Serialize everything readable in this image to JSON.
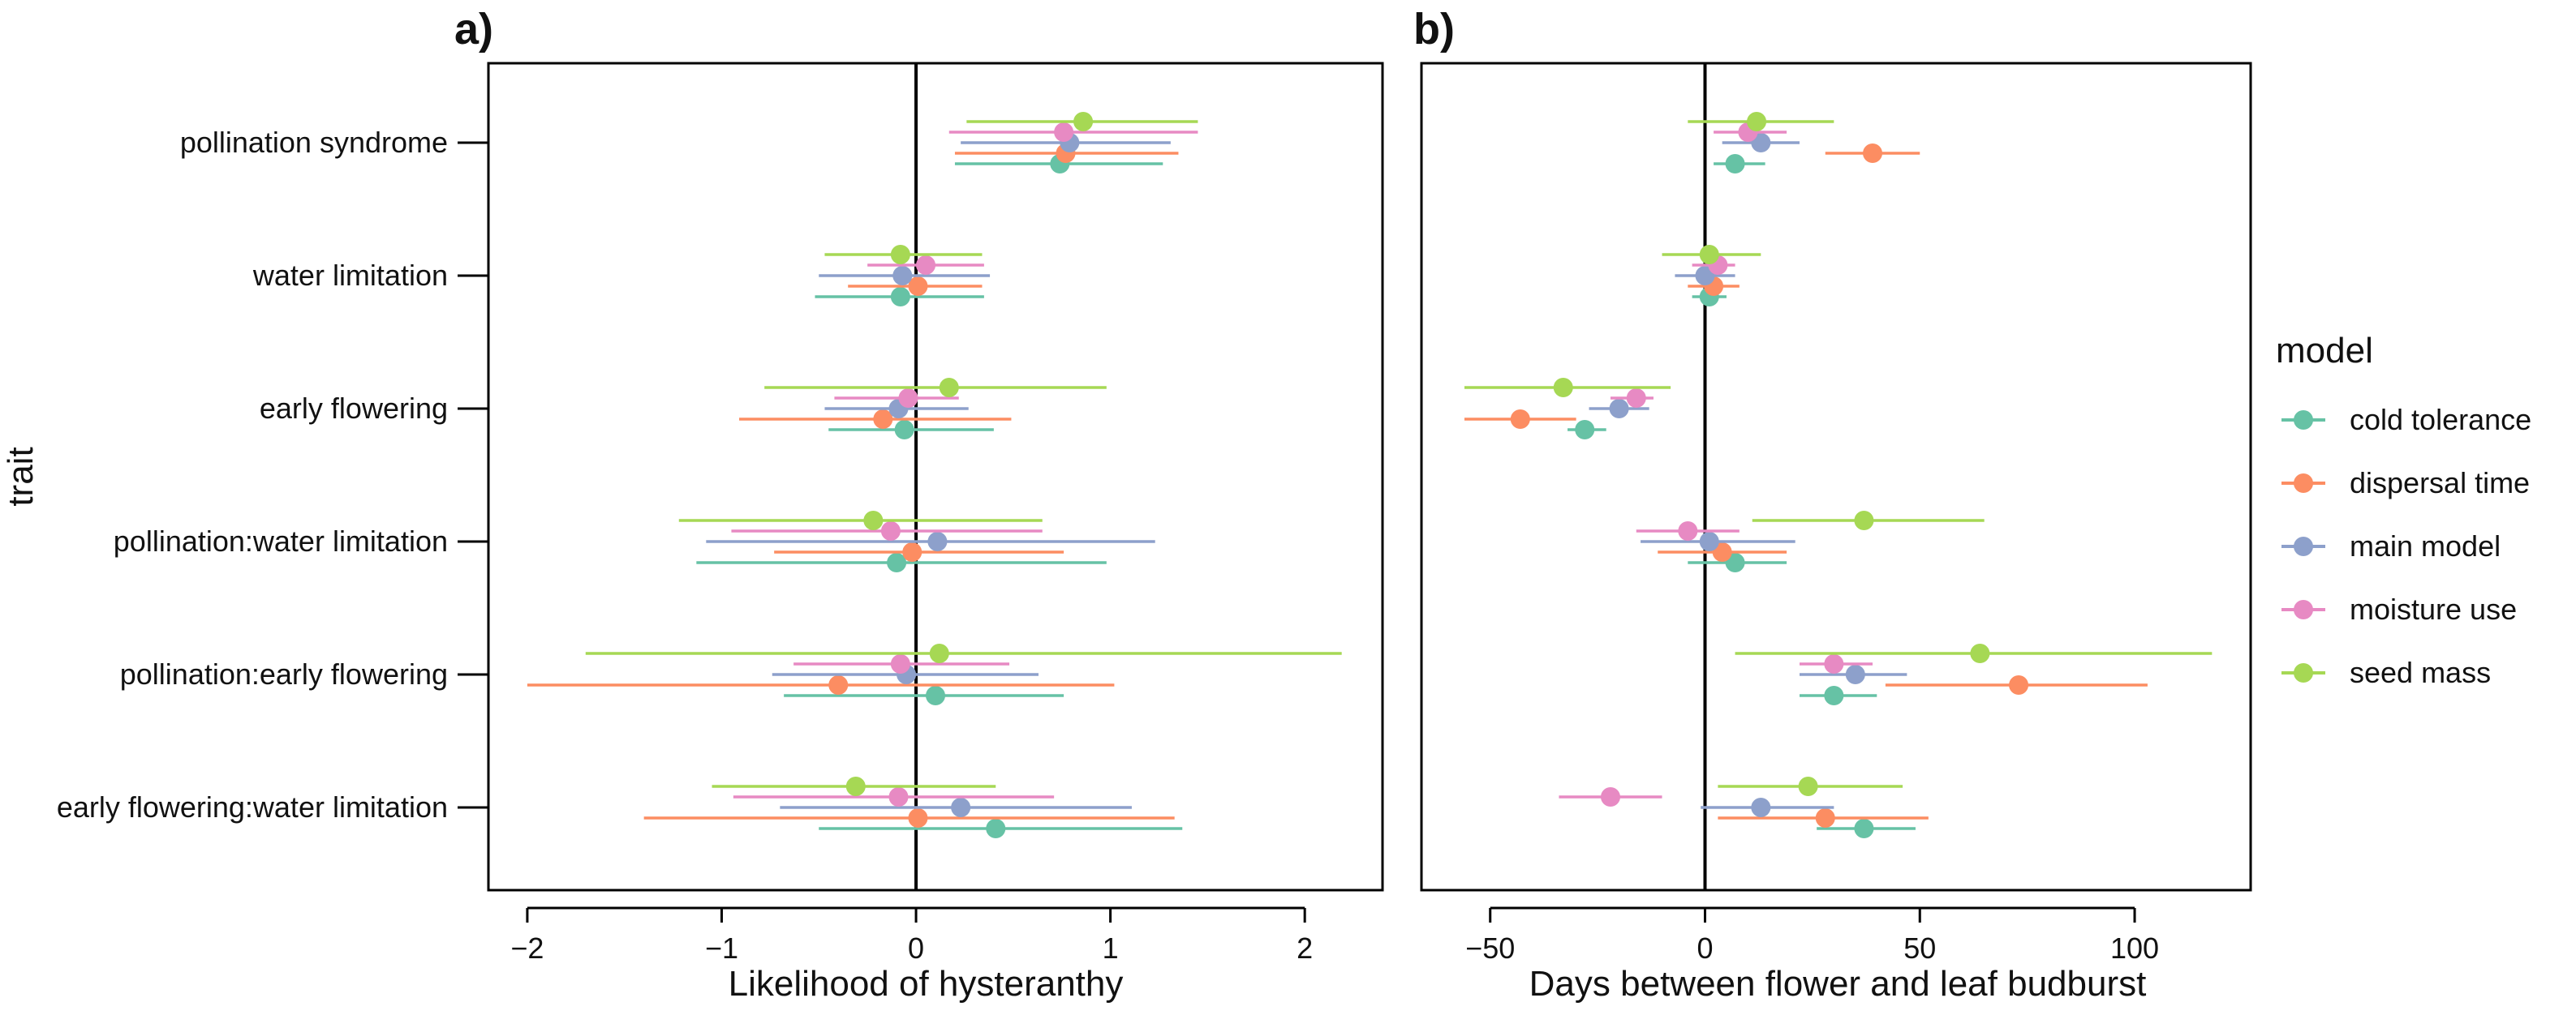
{
  "legend": {
    "title": "model",
    "entries": [
      {
        "name": "cold tolerance",
        "color": "#66C2A5"
      },
      {
        "name": "dispersal time",
        "color": "#FC8D62"
      },
      {
        "name": "main model",
        "color": "#8DA0CB"
      },
      {
        "name": "moisture use",
        "color": "#E78AC3"
      },
      {
        "name": "seed mass",
        "color": "#A6D854"
      }
    ]
  },
  "y_axis_title": "trait",
  "traits": [
    "pollination syndrome",
    "water limitation",
    "early flowering",
    "pollination:water limitation",
    "pollination:early flowering",
    "early flowering:water limitation"
  ],
  "chart_data": [
    {
      "type": "scatter",
      "panel_label": "a)",
      "title": "",
      "xlabel": "Likelihood of hysteranthy",
      "ylabel": "trait",
      "xlim": [
        -2.2,
        2.4
      ],
      "xticks": [
        -2,
        -1,
        0,
        1,
        2
      ],
      "xtick_labels": [
        "−2",
        "−1",
        "0",
        "1",
        "2"
      ],
      "reference_line_x": 0,
      "series": [
        {
          "name": "cold tolerance",
          "points": [
            {
              "trait": "pollination syndrome",
              "est": 0.74,
              "lo": 0.2,
              "hi": 1.27
            },
            {
              "trait": "water limitation",
              "est": -0.08,
              "lo": -0.52,
              "hi": 0.35
            },
            {
              "trait": "early flowering",
              "est": -0.06,
              "lo": -0.45,
              "hi": 0.4
            },
            {
              "trait": "pollination:water limitation",
              "est": -0.1,
              "lo": -1.13,
              "hi": 0.98
            },
            {
              "trait": "pollination:early flowering",
              "est": 0.1,
              "lo": -0.68,
              "hi": 0.76
            },
            {
              "trait": "early flowering:water limitation",
              "est": 0.41,
              "lo": -0.5,
              "hi": 1.37
            }
          ]
        },
        {
          "name": "dispersal time",
          "points": [
            {
              "trait": "pollination syndrome",
              "est": 0.77,
              "lo": 0.2,
              "hi": 1.35
            },
            {
              "trait": "water limitation",
              "est": 0.01,
              "lo": -0.35,
              "hi": 0.34
            },
            {
              "trait": "early flowering",
              "est": -0.17,
              "lo": -0.91,
              "hi": 0.49
            },
            {
              "trait": "pollination:water limitation",
              "est": -0.02,
              "lo": -0.73,
              "hi": 0.76
            },
            {
              "trait": "pollination:early flowering",
              "est": -0.4,
              "lo": -2.0,
              "hi": 1.02
            },
            {
              "trait": "early flowering:water limitation",
              "est": 0.01,
              "lo": -1.4,
              "hi": 1.33
            }
          ]
        },
        {
          "name": "main model",
          "points": [
            {
              "trait": "pollination syndrome",
              "est": 0.79,
              "lo": 0.23,
              "hi": 1.31
            },
            {
              "trait": "water limitation",
              "est": -0.07,
              "lo": -0.5,
              "hi": 0.38
            },
            {
              "trait": "early flowering",
              "est": -0.09,
              "lo": -0.47,
              "hi": 0.27
            },
            {
              "trait": "pollination:water limitation",
              "est": 0.11,
              "lo": -1.08,
              "hi": 1.23
            },
            {
              "trait": "pollination:early flowering",
              "est": -0.05,
              "lo": -0.74,
              "hi": 0.63
            },
            {
              "trait": "early flowering:water limitation",
              "est": 0.23,
              "lo": -0.7,
              "hi": 1.11
            }
          ]
        },
        {
          "name": "moisture use",
          "points": [
            {
              "trait": "pollination syndrome",
              "est": 0.76,
              "lo": 0.17,
              "hi": 1.45
            },
            {
              "trait": "water limitation",
              "est": 0.05,
              "lo": -0.25,
              "hi": 0.35
            },
            {
              "trait": "early flowering",
              "est": -0.04,
              "lo": -0.42,
              "hi": 0.22
            },
            {
              "trait": "pollination:water limitation",
              "est": -0.13,
              "lo": -0.95,
              "hi": 0.65
            },
            {
              "trait": "pollination:early flowering",
              "est": -0.08,
              "lo": -0.63,
              "hi": 0.48
            },
            {
              "trait": "early flowering:water limitation",
              "est": -0.09,
              "lo": -0.94,
              "hi": 0.71
            }
          ]
        },
        {
          "name": "seed mass",
          "points": [
            {
              "trait": "pollination syndrome",
              "est": 0.86,
              "lo": 0.26,
              "hi": 1.45
            },
            {
              "trait": "water limitation",
              "est": -0.08,
              "lo": -0.47,
              "hi": 0.34
            },
            {
              "trait": "early flowering",
              "est": 0.17,
              "lo": -0.78,
              "hi": 0.98
            },
            {
              "trait": "pollination:water limitation",
              "est": -0.22,
              "lo": -1.22,
              "hi": 0.65
            },
            {
              "trait": "pollination:early flowering",
              "est": 0.12,
              "lo": -1.7,
              "hi": 2.19
            },
            {
              "trait": "early flowering:water limitation",
              "est": -0.31,
              "lo": -1.05,
              "hi": 0.41
            }
          ]
        }
      ]
    },
    {
      "type": "scatter",
      "panel_label": "b)",
      "title": "",
      "xlabel": "Days between flower and leaf budburst",
      "ylabel": "",
      "xlim": [
        -66,
        127
      ],
      "xticks": [
        -50,
        0,
        50,
        100
      ],
      "xtick_labels": [
        "−50",
        "0",
        "50",
        "100"
      ],
      "reference_line_x": 0,
      "series": [
        {
          "name": "cold tolerance",
          "points": [
            {
              "trait": "pollination syndrome",
              "est": 7,
              "lo": 2,
              "hi": 14
            },
            {
              "trait": "water limitation",
              "est": 1,
              "lo": -3,
              "hi": 5
            },
            {
              "trait": "early flowering",
              "est": -28,
              "lo": -32,
              "hi": -23
            },
            {
              "trait": "pollination:water limitation",
              "est": 7,
              "lo": -4,
              "hi": 19
            },
            {
              "trait": "pollination:early flowering",
              "est": 30,
              "lo": 22,
              "hi": 40
            },
            {
              "trait": "early flowering:water limitation",
              "est": 37,
              "lo": 26,
              "hi": 49
            }
          ]
        },
        {
          "name": "dispersal time",
          "points": [
            {
              "trait": "pollination syndrome",
              "est": 39,
              "lo": 28,
              "hi": 50
            },
            {
              "trait": "water limitation",
              "est": 2,
              "lo": -4,
              "hi": 8
            },
            {
              "trait": "early flowering",
              "est": -43,
              "lo": -56,
              "hi": -30
            },
            {
              "trait": "pollination:water limitation",
              "est": 4,
              "lo": -11,
              "hi": 19
            },
            {
              "trait": "pollination:early flowering",
              "est": 73,
              "lo": 42,
              "hi": 103
            },
            {
              "trait": "early flowering:water limitation",
              "est": 28,
              "lo": 3,
              "hi": 52
            }
          ]
        },
        {
          "name": "main model",
          "points": [
            {
              "trait": "pollination syndrome",
              "est": 13,
              "lo": 4,
              "hi": 22
            },
            {
              "trait": "water limitation",
              "est": 0,
              "lo": -7,
              "hi": 7
            },
            {
              "trait": "early flowering",
              "est": -20,
              "lo": -27,
              "hi": -13
            },
            {
              "trait": "pollination:water limitation",
              "est": 1,
              "lo": -15,
              "hi": 21
            },
            {
              "trait": "pollination:early flowering",
              "est": 35,
              "lo": 22,
              "hi": 47
            },
            {
              "trait": "early flowering:water limitation",
              "est": 13,
              "lo": -1,
              "hi": 30
            }
          ]
        },
        {
          "name": "moisture use",
          "points": [
            {
              "trait": "pollination syndrome",
              "est": 10,
              "lo": 2,
              "hi": 19
            },
            {
              "trait": "water limitation",
              "est": 3,
              "lo": -3,
              "hi": 7
            },
            {
              "trait": "early flowering",
              "est": -16,
              "lo": -22,
              "hi": -12
            },
            {
              "trait": "pollination:water limitation",
              "est": -4,
              "lo": -16,
              "hi": 8
            },
            {
              "trait": "pollination:early flowering",
              "est": 30,
              "lo": 22,
              "hi": 39
            },
            {
              "trait": "early flowering:water limitation",
              "est": -22,
              "lo": -34,
              "hi": -10
            }
          ]
        },
        {
          "name": "seed mass",
          "points": [
            {
              "trait": "pollination syndrome",
              "est": 12,
              "lo": -4,
              "hi": 30
            },
            {
              "trait": "water limitation",
              "est": 1,
              "lo": -10,
              "hi": 13
            },
            {
              "trait": "early flowering",
              "est": -33,
              "lo": -56,
              "hi": -8
            },
            {
              "trait": "pollination:water limitation",
              "est": 37,
              "lo": 11,
              "hi": 65
            },
            {
              "trait": "pollination:early flowering",
              "est": 64,
              "lo": 7,
              "hi": 118
            },
            {
              "trait": "early flowering:water limitation",
              "est": 24,
              "lo": 3,
              "hi": 46
            }
          ]
        }
      ]
    }
  ]
}
